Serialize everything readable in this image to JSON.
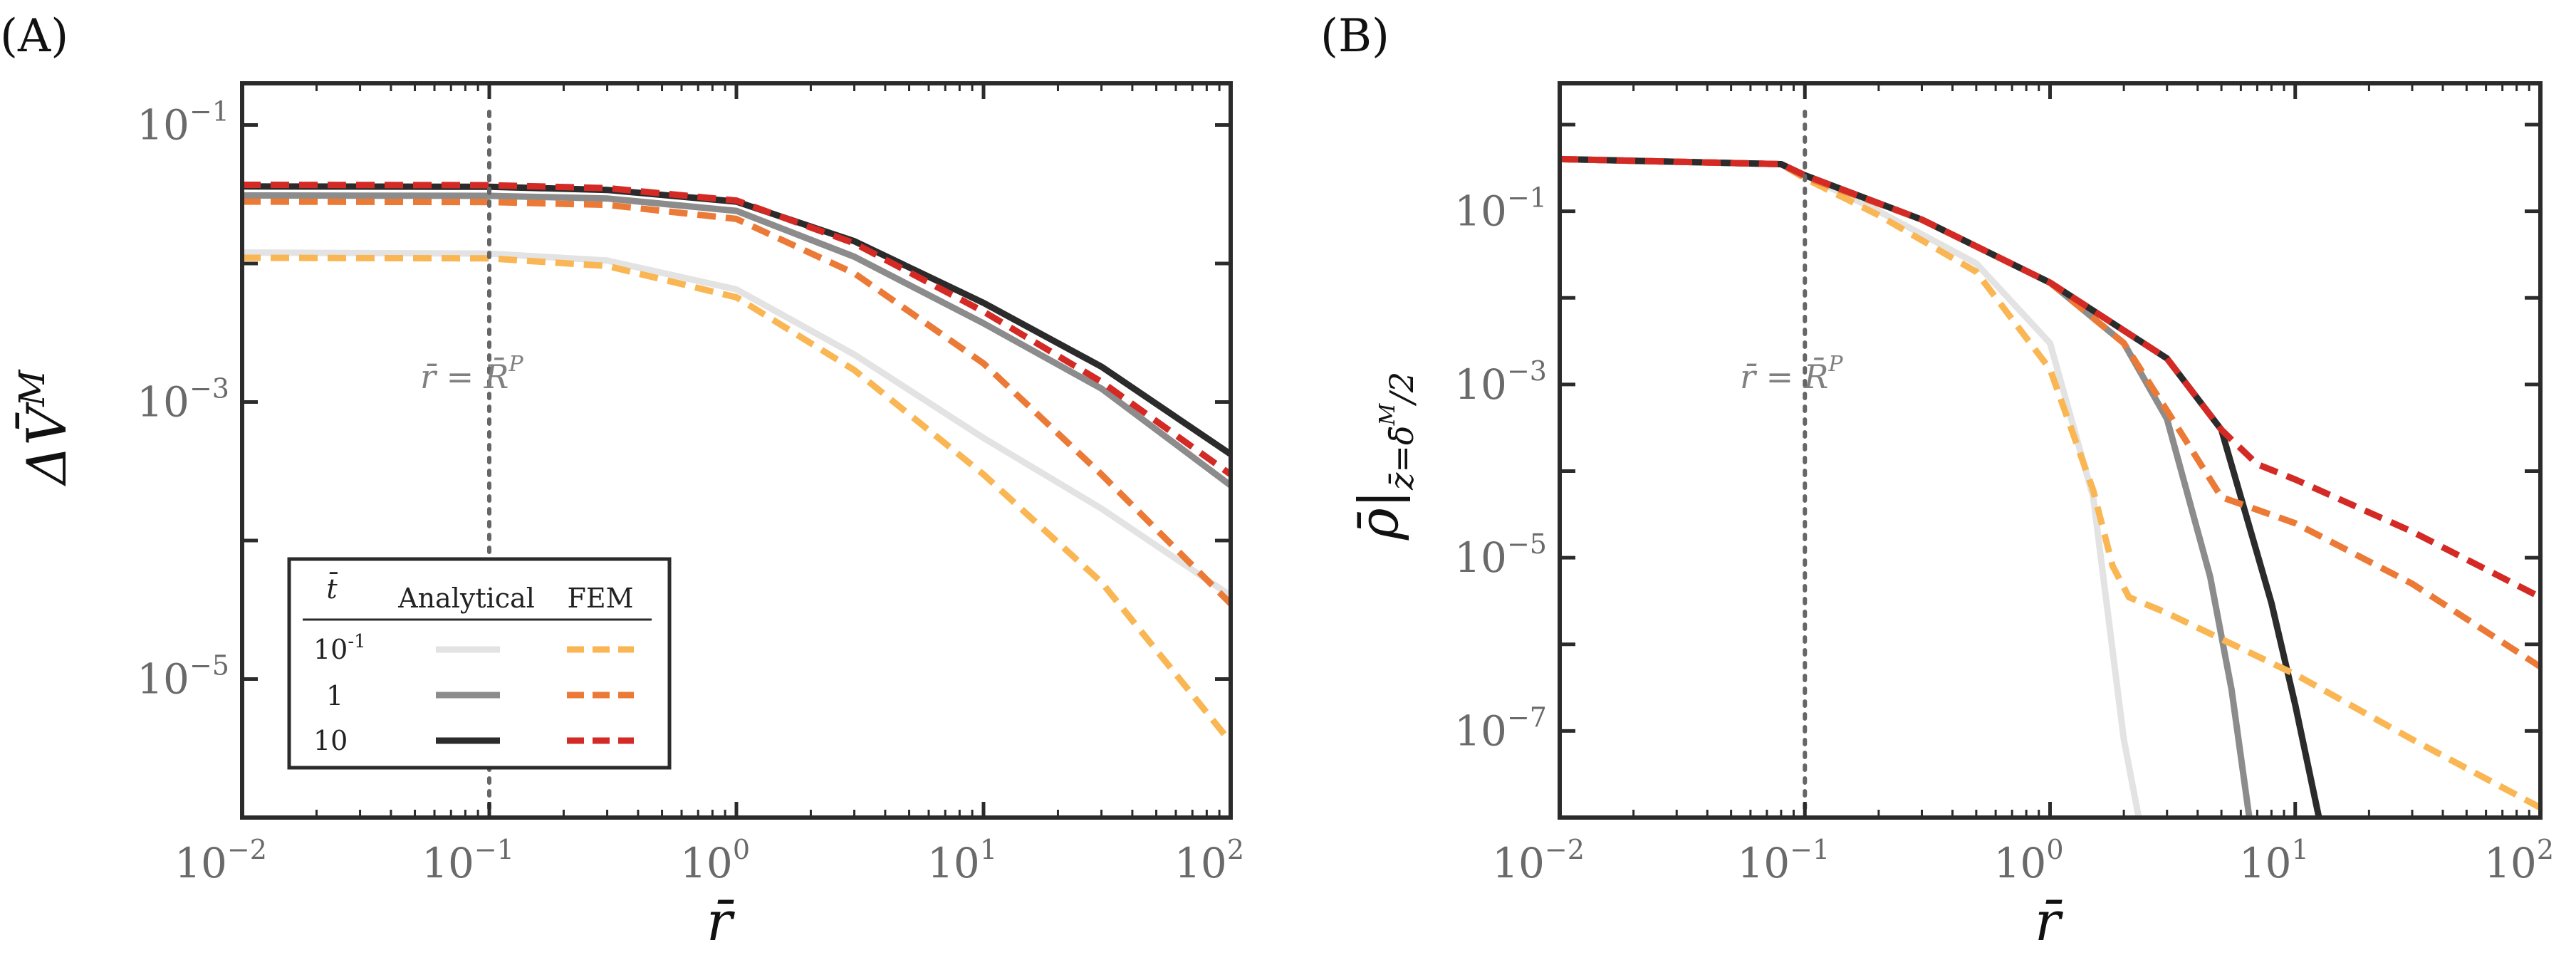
{
  "chart_data": [
    {
      "panel": "(A)",
      "type": "line",
      "xscale": "log",
      "yscale": "log",
      "xlim": [
        0.01,
        100
      ],
      "ylim": [
        1e-06,
        0.2
      ],
      "xlabel": "r̄",
      "ylabel": "ΔV̄M",
      "ylabel_parts": {
        "base": "ΔV̄",
        "sup": "M"
      },
      "xticks": [
        {
          "base": "10",
          "exp": "−2"
        },
        {
          "base": "10",
          "exp": "−1"
        },
        {
          "base": "10",
          "exp": "0"
        },
        {
          "base": "10",
          "exp": "1"
        },
        {
          "base": "10",
          "exp": "2"
        }
      ],
      "yticks": [
        {
          "base": "10",
          "exp": "−1",
          "value": 0.1
        },
        {
          "base": "10",
          "exp": "−3",
          "value": 0.001
        },
        {
          "base": "10",
          "exp": "−5",
          "value": 1e-05
        }
      ],
      "vline": {
        "x": 0.1,
        "label": "r̄ = R̄P",
        "label_parts": {
          "left": "r̄ = R̄",
          "sup": "P"
        }
      },
      "series": [
        {
          "name": "Analytical t̄=10⁻¹",
          "style": "solid",
          "color": "#e3e3e3",
          "x": [
            0.01,
            0.1,
            0.3,
            1,
            3,
            10,
            30,
            100
          ],
          "y": [
            0.012,
            0.0118,
            0.0105,
            0.0065,
            0.0022,
            0.00055,
            0.00017,
            4e-05
          ]
        },
        {
          "name": "Analytical t̄=1",
          "style": "solid",
          "color": "#8c8c8c",
          "x": [
            0.01,
            0.1,
            0.3,
            1,
            3,
            10,
            30,
            100
          ],
          "y": [
            0.031,
            0.0308,
            0.0295,
            0.024,
            0.0112,
            0.0037,
            0.00125,
            0.00025
          ]
        },
        {
          "name": "Analytical t̄=10",
          "style": "solid",
          "color": "#2b2b2b",
          "x": [
            0.01,
            0.1,
            0.3,
            1,
            3,
            10,
            30,
            100
          ],
          "y": [
            0.036,
            0.0358,
            0.034,
            0.028,
            0.0145,
            0.0052,
            0.0018,
            0.00042
          ]
        },
        {
          "name": "FEM t̄=10⁻¹",
          "style": "dashed",
          "color": "#f9b653",
          "x": [
            0.01,
            0.1,
            0.3,
            1,
            3,
            10,
            30,
            100
          ],
          "y": [
            0.011,
            0.0109,
            0.0096,
            0.0057,
            0.0017,
            0.0003,
            5e-05,
            3.5e-06
          ]
        },
        {
          "name": "FEM t̄=1",
          "style": "dashed",
          "color": "#ec7a37",
          "x": [
            0.01,
            0.1,
            0.3,
            1,
            3,
            10,
            30,
            100
          ],
          "y": [
            0.028,
            0.0278,
            0.0265,
            0.021,
            0.0085,
            0.0019,
            0.0003,
            3.5e-05
          ]
        },
        {
          "name": "FEM t̄=10",
          "style": "dashed",
          "color": "#d42a25",
          "x": [
            0.01,
            0.1,
            0.3,
            1,
            3,
            10,
            30,
            100
          ],
          "y": [
            0.037,
            0.0368,
            0.035,
            0.0285,
            0.014,
            0.0045,
            0.0014,
            0.0003
          ]
        }
      ],
      "legend": {
        "placement": "lower-left",
        "header": [
          "t̄",
          "Analytical",
          "FEM"
        ],
        "rows": [
          {
            "base": "10",
            "exp": "-1"
          },
          {
            "base": "1",
            "exp": ""
          },
          {
            "base": "10",
            "exp": ""
          }
        ]
      }
    },
    {
      "panel": "(B)",
      "type": "line",
      "xscale": "log",
      "yscale": "log",
      "xlim": [
        0.01,
        100
      ],
      "ylim": [
        1e-08,
        3
      ],
      "xlabel": "r̄",
      "ylabel": "ρ̄|z̄=δ̄M/2",
      "ylabel_parts": {
        "base": "ρ̄|",
        "sub": "z̄=δ̄",
        "subsup": "M",
        "subtail": "/2"
      },
      "xticks": [
        {
          "base": "10",
          "exp": "−2"
        },
        {
          "base": "10",
          "exp": "−1"
        },
        {
          "base": "10",
          "exp": "0"
        },
        {
          "base": "10",
          "exp": "1"
        },
        {
          "base": "10",
          "exp": "2"
        }
      ],
      "yticks": [
        {
          "base": "10",
          "exp": "−1",
          "value": 0.1
        },
        {
          "base": "10",
          "exp": "−3",
          "value": 0.001
        },
        {
          "base": "10",
          "exp": "−5",
          "value": 1e-05
        },
        {
          "base": "10",
          "exp": "−7",
          "value": 1e-07
        }
      ],
      "vline": {
        "x": 0.1,
        "label": "r̄ = R̄P",
        "label_parts": {
          "left": "r̄ = R̄",
          "sup": "P"
        }
      },
      "series": [
        {
          "name": "Analytical t̄=10⁻¹",
          "style": "solid",
          "color": "#e3e3e3",
          "x": [
            0.01,
            0.08,
            0.1,
            0.2,
            0.5,
            1,
            1.5,
            2,
            2.3
          ],
          "y": [
            0.4,
            0.35,
            0.26,
            0.1,
            0.025,
            0.003,
            5e-05,
            8e-08,
            1e-08
          ]
        },
        {
          "name": "Analytical t̄=1",
          "style": "solid",
          "color": "#8c8c8c",
          "x": [
            0.01,
            0.08,
            0.1,
            0.3,
            1,
            2,
            3,
            4.5,
            5.5,
            6.5
          ],
          "y": [
            0.4,
            0.35,
            0.26,
            0.08,
            0.015,
            0.003,
            0.0004,
            6e-06,
            3e-07,
            1e-08
          ]
        },
        {
          "name": "Analytical t̄=10",
          "style": "solid",
          "color": "#2b2b2b",
          "x": [
            0.01,
            0.08,
            0.1,
            0.3,
            1,
            3,
            5,
            8,
            10,
            12.5
          ],
          "y": [
            0.4,
            0.35,
            0.26,
            0.08,
            0.015,
            0.002,
            0.0003,
            3e-06,
            2e-07,
            1e-08
          ]
        },
        {
          "name": "FEM t̄=10⁻¹",
          "style": "dashed",
          "color": "#f9b653",
          "x": [
            0.01,
            0.08,
            0.1,
            0.2,
            0.5,
            1,
            1.5,
            1.8,
            2.1,
            3,
            10,
            30,
            100
          ],
          "y": [
            0.4,
            0.35,
            0.24,
            0.09,
            0.02,
            0.0015,
            6e-05,
            8e-06,
            3.5e-06,
            2.3e-06,
            4.5e-07,
            8e-08,
            1.3e-08
          ]
        },
        {
          "name": "FEM t̄=1",
          "style": "dashed",
          "color": "#ec7a37",
          "x": [
            0.01,
            0.08,
            0.1,
            0.3,
            1,
            2,
            3,
            5,
            10,
            30,
            100
          ],
          "y": [
            0.4,
            0.35,
            0.25,
            0.08,
            0.015,
            0.003,
            0.0005,
            5e-05,
            2.5e-05,
            5e-06,
            5.5e-07
          ]
        },
        {
          "name": "FEM t̄=10",
          "style": "dashed",
          "color": "#d42a25",
          "x": [
            0.01,
            0.08,
            0.1,
            0.3,
            1,
            3,
            5,
            7,
            10,
            30,
            100
          ],
          "y": [
            0.4,
            0.35,
            0.26,
            0.08,
            0.015,
            0.002,
            0.0003,
            0.00012,
            8e-05,
            2e-05,
            3.5e-06
          ]
        }
      ]
    }
  ]
}
